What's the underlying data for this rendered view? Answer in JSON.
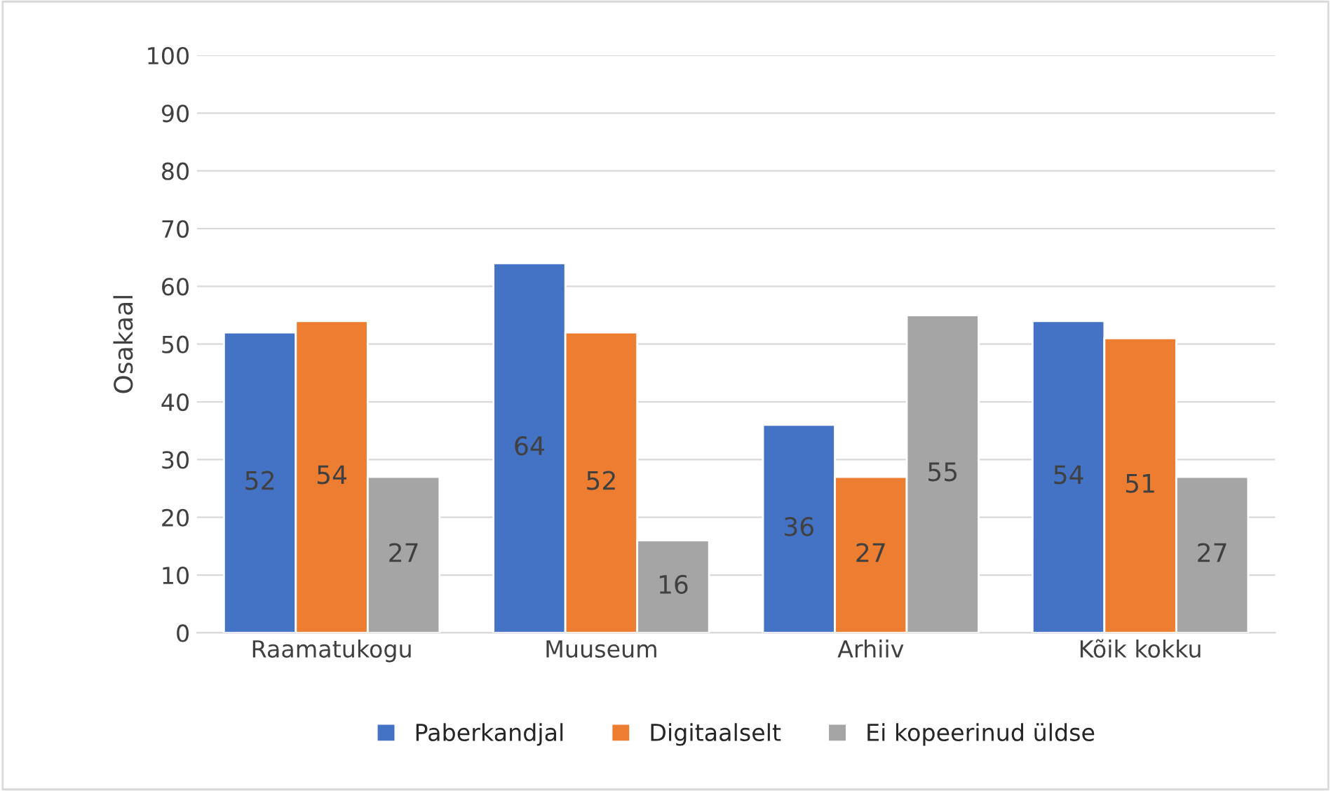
{
  "chart_data": {
    "type": "bar",
    "ylabel": "Osakaal",
    "categories": [
      "Raamatukogu",
      "Muuseum",
      "Arhiiv",
      "Kõik kokku"
    ],
    "series": [
      {
        "name": "Paberkandjal",
        "color": "#4472c4",
        "values": [
          52,
          64,
          36,
          54
        ]
      },
      {
        "name": "Digitaalselt",
        "color": "#ed7d31",
        "values": [
          54,
          52,
          27,
          51
        ]
      },
      {
        "name": "Ei kopeerinud üldse",
        "color": "#a5a5a5",
        "values": [
          27,
          16,
          55,
          27
        ]
      }
    ],
    "ylim": [
      0,
      100
    ],
    "yticks": [
      0,
      10,
      20,
      30,
      40,
      50,
      60,
      70,
      80,
      90,
      100
    ],
    "grid": "y",
    "legend": "bottom",
    "data_labels": true
  }
}
